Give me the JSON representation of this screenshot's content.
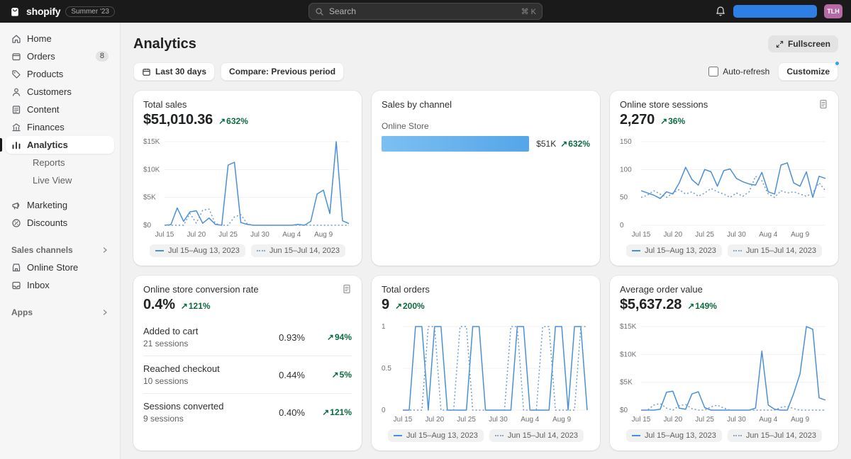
{
  "colors": {
    "accent_blue": "#4a90d9",
    "comparison_blue": "#6d9ecf",
    "bar_blue": "#55a5e8",
    "positive_green": "#0b6b40",
    "redacted_blue": "#2e7ee4",
    "avatar_bg": "#b56aa5",
    "customize_dot": "#29a5e8"
  },
  "glyphs": {
    "increase": "↗"
  },
  "topbar": {
    "brand": "shopify",
    "version_badge": "Summer '23",
    "search_placeholder": "Search",
    "search_shortcut": "⌘ K",
    "avatar_initials": "TLH"
  },
  "sidebar": {
    "items": [
      {
        "label": "Home"
      },
      {
        "label": "Orders",
        "badge": "8"
      },
      {
        "label": "Products"
      },
      {
        "label": "Customers"
      },
      {
        "label": "Content"
      },
      {
        "label": "Finances"
      },
      {
        "label": "Analytics"
      },
      {
        "label": "Reports"
      },
      {
        "label": "Live View"
      },
      {
        "label": "Marketing"
      },
      {
        "label": "Discounts"
      }
    ],
    "sales_channels": {
      "label": "Sales channels",
      "items": [
        {
          "label": "Online Store"
        },
        {
          "label": "Inbox"
        }
      ]
    },
    "apps": {
      "label": "Apps"
    }
  },
  "page": {
    "title": "Analytics",
    "fullscreen": "Fullscreen"
  },
  "toolbar": {
    "date_range": "Last 30 days",
    "compare": "Compare: Previous period",
    "auto_refresh": "Auto-refresh",
    "customize": "Customize"
  },
  "legend": {
    "current": "Jul 15–Aug 13, 2023",
    "previous": "Jun 15–Jul 14, 2023"
  },
  "cards": {
    "total_sales": {
      "title": "Total sales",
      "value": "$51,010.36",
      "change": "632%"
    },
    "sales_by_channel": {
      "title": "Sales by channel",
      "channel": "Online Store",
      "value": "$51K",
      "change": "632%"
    },
    "sessions": {
      "title": "Online store sessions",
      "value": "2,270",
      "change": "36%"
    },
    "conversion": {
      "title": "Online store conversion rate",
      "value": "0.4%",
      "change": "121%",
      "rows": [
        {
          "label": "Added to cart",
          "sub": "21 sessions",
          "rate": "0.93%",
          "change": "94%"
        },
        {
          "label": "Reached checkout",
          "sub": "10 sessions",
          "rate": "0.44%",
          "change": "5%"
        },
        {
          "label": "Sessions converted",
          "sub": "9 sessions",
          "rate": "0.40%",
          "change": "121%"
        }
      ]
    },
    "total_orders": {
      "title": "Total orders",
      "value": "9",
      "change": "200%"
    },
    "avg_order_value": {
      "title": "Average order value",
      "value": "$5,637.28",
      "change": "149%"
    }
  },
  "chart_data": [
    {
      "id": "total-sales",
      "type": "line",
      "title": "Total sales",
      "ylim": [
        0,
        15000
      ],
      "yticks": [
        [
          15000,
          "$15K"
        ],
        [
          10000,
          "$10K"
        ],
        [
          5000,
          "$5K"
        ],
        [
          0,
          "$0"
        ]
      ],
      "xticks": [
        "Jul 15",
        "Jul 20",
        "Jul 25",
        "Jul 30",
        "Aug 4",
        "Aug 9"
      ],
      "xtick_idx": [
        0,
        5,
        10,
        15,
        20,
        25
      ],
      "series": [
        {
          "name": "Jul 15–Aug 13, 2023",
          "style": "solid",
          "color": "#4a90d9",
          "values": [
            0,
            120,
            3100,
            700,
            2400,
            2600,
            350,
            1300,
            150,
            0,
            10800,
            11300,
            500,
            150,
            0,
            0,
            0,
            0,
            0,
            0,
            0,
            150,
            0,
            700,
            5600,
            6300,
            2100,
            15000,
            800,
            300
          ]
        },
        {
          "name": "Jun 15–Jul 14, 2023",
          "style": "dotted",
          "color": "#6d9ecf",
          "values": [
            0,
            0,
            0,
            0,
            2100,
            400,
            2700,
            2900,
            300,
            0,
            0,
            1500,
            1900,
            250,
            0,
            0,
            0,
            0,
            0,
            0,
            0,
            0,
            0,
            0,
            0,
            0,
            0,
            0,
            0,
            0
          ]
        }
      ]
    },
    {
      "id": "sales-by-channel",
      "type": "bar",
      "title": "Sales by channel",
      "categories": [
        "Online Store"
      ],
      "values": [
        51000
      ],
      "value_label": "$51K",
      "change": "632%"
    },
    {
      "id": "online-store-sessions",
      "type": "line",
      "title": "Online store sessions",
      "ylim": [
        0,
        150
      ],
      "yticks": [
        [
          150,
          "150"
        ],
        [
          100,
          "100"
        ],
        [
          50,
          "50"
        ],
        [
          0,
          "0"
        ]
      ],
      "xticks": [
        "Jul 15",
        "Jul 20",
        "Jul 25",
        "Jul 30",
        "Aug 4",
        "Aug 9"
      ],
      "xtick_idx": [
        0,
        5,
        10,
        15,
        20,
        25
      ],
      "series": [
        {
          "name": "Jul 15–Aug 13, 2023",
          "style": "solid",
          "color": "#4a90d9",
          "values": [
            62,
            58,
            54,
            48,
            60,
            56,
            76,
            104,
            82,
            72,
            100,
            96,
            70,
            98,
            101,
            84,
            78,
            74,
            72,
            95,
            60,
            56,
            108,
            112,
            76,
            70,
            96,
            50,
            88,
            84
          ]
        },
        {
          "name": "Jun 15–Jul 14, 2023",
          "style": "dotted",
          "color": "#6d9ecf",
          "values": [
            50,
            54,
            62,
            56,
            50,
            58,
            64,
            56,
            60,
            52,
            58,
            66,
            60,
            56,
            50,
            58,
            52,
            60,
            88,
            80,
            56,
            50,
            62,
            58,
            60,
            56,
            52,
            58,
            76,
            62
          ]
        }
      ]
    },
    {
      "id": "total-orders",
      "type": "line",
      "title": "Total orders",
      "ylim": [
        0,
        1
      ],
      "yticks": [
        [
          1,
          "1"
        ],
        [
          0.5,
          "0.5"
        ],
        [
          0,
          "0"
        ]
      ],
      "xticks": [
        "Jul 15",
        "Jul 20",
        "Jul 25",
        "Jul 30",
        "Aug 4",
        "Aug 9"
      ],
      "xtick_idx": [
        0,
        5,
        10,
        15,
        20,
        25
      ],
      "series": [
        {
          "name": "Jul 15–Aug 13, 2023",
          "style": "solid",
          "color": "#4a90d9",
          "values": [
            0,
            0,
            1,
            1,
            0,
            1,
            1,
            0,
            0,
            0,
            0,
            1,
            1,
            0,
            0,
            0,
            0,
            0,
            1,
            1,
            0,
            0,
            0,
            0,
            1,
            1,
            0,
            1,
            1,
            0
          ]
        },
        {
          "name": "Jun 15–Jul 14, 2023",
          "style": "dotted",
          "color": "#6d9ecf",
          "values": [
            0,
            0,
            0,
            0,
            1,
            1,
            0,
            0,
            0,
            1,
            1,
            0,
            0,
            0,
            0,
            0,
            0,
            1,
            1,
            0,
            0,
            0,
            1,
            1,
            0,
            0,
            0,
            0,
            1,
            1
          ]
        }
      ]
    },
    {
      "id": "average-order-value",
      "type": "line",
      "title": "Average order value",
      "ylim": [
        0,
        15000
      ],
      "yticks": [
        [
          15000,
          "$15K"
        ],
        [
          10000,
          "$10K"
        ],
        [
          5000,
          "$5K"
        ],
        [
          0,
          "$0"
        ]
      ],
      "xticks": [
        "Jul 15",
        "Jul 20",
        "Jul 25",
        "Jul 30",
        "Aug 4",
        "Aug 9"
      ],
      "xtick_idx": [
        0,
        5,
        10,
        15,
        20,
        25
      ],
      "series": [
        {
          "name": "Jul 15–Aug 13, 2023",
          "style": "solid",
          "color": "#4a90d9",
          "values": [
            0,
            0,
            0,
            150,
            3200,
            3400,
            350,
            150,
            2900,
            3300,
            450,
            0,
            0,
            0,
            0,
            0,
            0,
            0,
            350,
            10600,
            900,
            150,
            0,
            0,
            3000,
            6500,
            15000,
            14500,
            2200,
            1800
          ]
        },
        {
          "name": "Jun 15–Jul 14, 2023",
          "style": "dotted",
          "color": "#6d9ecf",
          "values": [
            0,
            0,
            900,
            1200,
            350,
            0,
            800,
            1000,
            250,
            0,
            0,
            600,
            900,
            350,
            0,
            0,
            0,
            0,
            0,
            0,
            0,
            0,
            500,
            700,
            250,
            0,
            0,
            0,
            0,
            0
          ]
        }
      ]
    }
  ]
}
